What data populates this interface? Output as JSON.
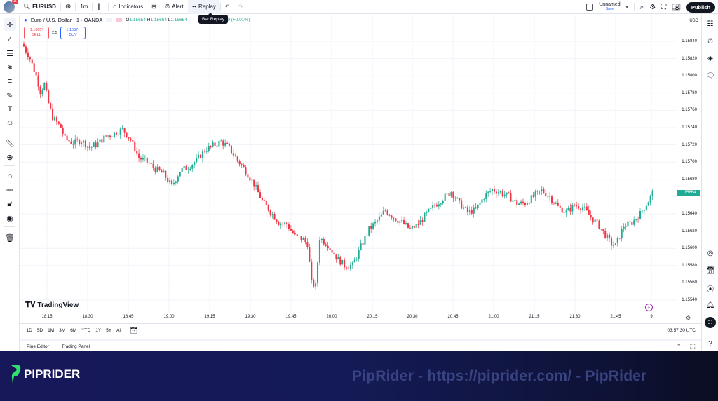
{
  "topbar": {
    "avatar_badge": "11",
    "symbol": "EURUSD",
    "interval": "1m",
    "indicators_label": "Indicators",
    "alert_label": "Alert",
    "replay_label": "Replay",
    "tooltip": "Bar Replay",
    "layout_name": "Unnamed",
    "layout_save": "Save",
    "publish_label": "Publish"
  },
  "legend": {
    "title": "Euro / U.S. Dollar · 1 · OANDA",
    "o_label": "O",
    "o": "1.15654",
    "h_label": "H",
    "h": "1.15664",
    "l_label": "L",
    "l": "1.15654",
    "change": "+0.00009 (+0.01%)"
  },
  "trade": {
    "sell_price": "1.1565¹",
    "sell_label": "SELL",
    "spread": "2.5",
    "buy_price": "1.1567⁴",
    "buy_label": "BUY"
  },
  "price_axis": {
    "currency": "USD",
    "current_price": "1.15664",
    "current_color": "#22ab94"
  },
  "time_axis_utc": "03:57:30 UTC",
  "range_buttons": [
    "1D",
    "5D",
    "1M",
    "3M",
    "6M",
    "YTD",
    "1Y",
    "5Y",
    "All"
  ],
  "bottom_tabs": [
    "Pine Editor",
    "Trading Panel"
  ],
  "branding": {
    "tv_logo": "TradingView",
    "footer_logo": "PIPRIDER",
    "footer_text": "PipRider - https://piprider.com/ - PipRider"
  },
  "colors": {
    "up": "#22ab94",
    "down": "#f23645",
    "grid": "#f0f3fa",
    "price_line": "#22ab94"
  },
  "chart_data": {
    "type": "candlestick",
    "title": "Euro / U.S. Dollar · 1 · OANDA",
    "xlabel": "",
    "ylabel": "USD",
    "ylim": [
      1.1553,
      1.1585
    ],
    "y_ticks": [
      1.1584,
      1.1582,
      1.158,
      1.1578,
      1.1576,
      1.1574,
      1.1572,
      1.157,
      1.1568,
      1.1564,
      1.1562,
      1.156,
      1.1558,
      1.1556,
      1.1554
    ],
    "x_ticks": [
      "18:15",
      "18:30",
      "18:45",
      "19:00",
      "19:15",
      "19:30",
      "19:45",
      "20:00",
      "20:15",
      "20:30",
      "20:45",
      "21:00",
      "21:15",
      "21:30",
      "21:45",
      "9"
    ],
    "last_price": 1.15664,
    "grid": true,
    "close_path": [
      [
        0,
        1.15834
      ],
      [
        3,
        1.1582
      ],
      [
        6,
        1.158
      ],
      [
        8,
        1.15782
      ],
      [
        10,
        1.1579
      ],
      [
        12,
        1.15768
      ],
      [
        14,
        1.15752
      ],
      [
        18,
        1.1574
      ],
      [
        20,
        1.15727
      ],
      [
        24,
        1.15722
      ],
      [
        28,
        1.15725
      ],
      [
        32,
        1.15717
      ],
      [
        36,
        1.15722
      ],
      [
        40,
        1.1573
      ],
      [
        44,
        1.15733
      ],
      [
        48,
        1.15738
      ],
      [
        52,
        1.15726
      ],
      [
        56,
        1.15705
      ],
      [
        60,
        1.157
      ],
      [
        64,
        1.15692
      ],
      [
        68,
        1.15686
      ],
      [
        72,
        1.15672
      ],
      [
        76,
        1.1569
      ],
      [
        80,
        1.15694
      ],
      [
        84,
        1.15702
      ],
      [
        88,
        1.15714
      ],
      [
        92,
        1.15719
      ],
      [
        96,
        1.15724
      ],
      [
        100,
        1.15716
      ],
      [
        104,
        1.15702
      ],
      [
        108,
        1.1569
      ],
      [
        112,
        1.15674
      ],
      [
        116,
        1.15655
      ],
      [
        120,
        1.15643
      ],
      [
        124,
        1.1563
      ],
      [
        128,
        1.15628
      ],
      [
        132,
        1.15614
      ],
      [
        136,
        1.1561
      ],
      [
        138,
        1.15605
      ],
      [
        140,
        1.1556
      ],
      [
        142,
        1.15556
      ],
      [
        144,
        1.15612
      ],
      [
        148,
        1.15604
      ],
      [
        152,
        1.1559
      ],
      [
        156,
        1.1558
      ],
      [
        160,
        1.1558
      ],
      [
        164,
        1.15602
      ],
      [
        168,
        1.15622
      ],
      [
        172,
        1.15632
      ],
      [
        176,
        1.15644
      ],
      [
        180,
        1.15636
      ],
      [
        184,
        1.1563
      ],
      [
        188,
        1.15622
      ],
      [
        192,
        1.15628
      ],
      [
        196,
        1.1564
      ],
      [
        200,
        1.1565
      ],
      [
        204,
        1.15658
      ],
      [
        208,
        1.15666
      ],
      [
        212,
        1.15652
      ],
      [
        216,
        1.15642
      ],
      [
        220,
        1.15645
      ],
      [
        224,
        1.1566
      ],
      [
        228,
        1.15668
      ],
      [
        232,
        1.15665
      ],
      [
        236,
        1.1566
      ],
      [
        240,
        1.15652
      ],
      [
        244,
        1.15652
      ],
      [
        248,
        1.1566
      ],
      [
        252,
        1.15667
      ],
      [
        256,
        1.1566
      ],
      [
        260,
        1.15648
      ],
      [
        264,
        1.15642
      ],
      [
        268,
        1.1565
      ],
      [
        272,
        1.15648
      ],
      [
        276,
        1.15636
      ],
      [
        280,
        1.15626
      ],
      [
        284,
        1.15612
      ],
      [
        286,
        1.15605
      ],
      [
        288,
        1.15603
      ],
      [
        292,
        1.15626
      ],
      [
        296,
        1.1563
      ],
      [
        300,
        1.1564
      ],
      [
        304,
        1.15655
      ],
      [
        306,
        1.15664
      ]
    ]
  }
}
